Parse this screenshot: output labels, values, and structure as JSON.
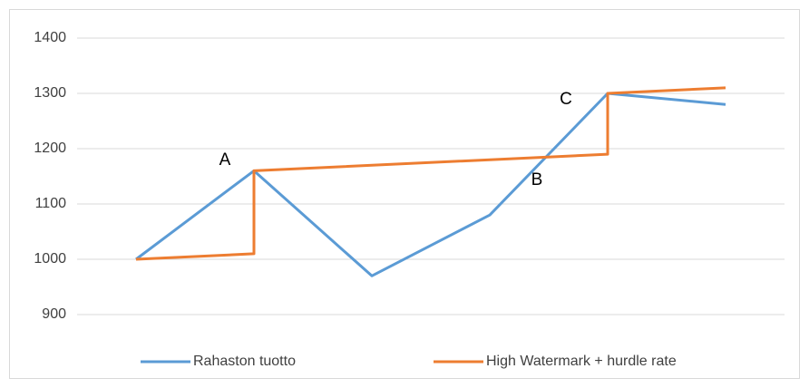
{
  "chart_data": {
    "type": "line",
    "annotations": [
      "A",
      "B",
      "C"
    ],
    "series": [
      {
        "name": "Rahaston tuotto",
        "color": "#5b9bd5",
        "x": [
          0,
          1,
          2,
          3,
          4,
          5
        ],
        "values": [
          1000,
          1160,
          970,
          1080,
          1300,
          1280
        ]
      },
      {
        "name": "High Watermark + hurdle rate",
        "color": "#ed7d31",
        "x": [
          0,
          1,
          1,
          4,
          4,
          5
        ],
        "values": [
          1000,
          1010,
          1160,
          1190,
          1300,
          1310
        ]
      }
    ],
    "xlim": [
      -0.5,
      5.5
    ],
    "ylim": [
      900,
      1400
    ],
    "yticks": [
      900,
      1000,
      1100,
      1200,
      1300,
      1400
    ],
    "grid": true,
    "legend": "bottom"
  }
}
